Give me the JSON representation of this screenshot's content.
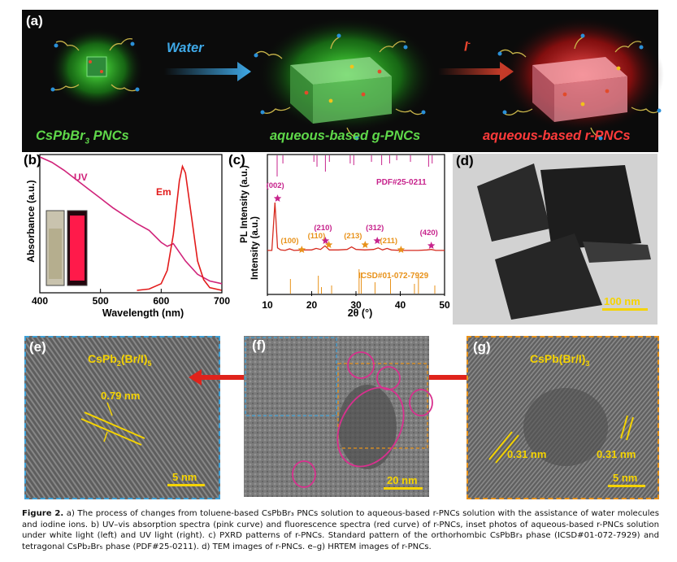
{
  "panel_a": {
    "letter": "(a)",
    "arrow1_label": "Water",
    "arrow2_label": "I",
    "arrow2_sup": "-",
    "label_left": "CsPbBr",
    "label_left_sub": "3",
    "label_left_tail": " PNCs",
    "label_mid": "aqueous-based g-PNCs",
    "label_right": "aqueous-based r-PNCs"
  },
  "panel_b": {
    "letter": "(b)",
    "ylabel": "Absorbance (a.u.)",
    "xlabel": "Wavelength (nm)",
    "uv_label": "UV",
    "em_label": "Em",
    "x_ticks": [
      "400",
      "500",
      "600",
      "700"
    ]
  },
  "panel_c": {
    "letter": "(c)",
    "ylabel_top": "PL Intensity (a.u.)",
    "ylabel_bottom": "Intensity (a.u.)",
    "xlabel": "2θ (°)",
    "ref_top": "PDF#25-0211",
    "ref_bottom": "ICSD#01-072-7929",
    "x_ticks": [
      "10",
      "20",
      "30",
      "40",
      "50"
    ],
    "peaks_pink": [
      "(002)",
      "(210)",
      "(312)",
      "(420)"
    ],
    "peaks_orange": [
      "(100)",
      "(110)",
      "(213)",
      "(211)"
    ]
  },
  "panel_d": {
    "letter": "(d)",
    "scale": "100 nm"
  },
  "panel_e": {
    "letter": "(e)",
    "phase": "CsPb",
    "phase_sub": "2",
    "phase_tail": "(Br/I)",
    "phase_sub2": "5",
    "spacing": "0.79 nm",
    "scale": "5 nm"
  },
  "panel_f": {
    "letter": "(f)",
    "scale": "20 nm"
  },
  "panel_g": {
    "letter": "(g)",
    "phase": "CsPb(Br/I)",
    "phase_sub": "3",
    "spacing1": "0.31 nm",
    "spacing2": "0.31 nm",
    "scale": "5 nm"
  },
  "caption": {
    "lead": "Figure 2.",
    "text": " a) The process of changes from toluene-based CsPbBr₃ PNCs solution to aqueous-based r-PNCs solution with the assistance of water molecules and iodine ions. b) UV–vis absorption spectra (pink curve) and fluorescence spectra (red curve) of r-PNCs, inset photos of aqueous-based r-PNCs solution under white light (left) and UV light (right). c) PXRD patterns of r-PNCs. Standard pattern of the orthorhombic CsPbBr₃ phase (ICSD#01-072-7929) and tetragonal CsPb₂Br₅ phase (PDF#25-0211). d) TEM images of r-PNCs. e–g) HRTEM images of r-PNCs."
  },
  "chart_data": [
    {
      "type": "line",
      "title": "",
      "xlabel": "Wavelength (nm)",
      "ylabel": "Absorbance (a.u.)",
      "xlim": [
        400,
        700
      ],
      "series": [
        {
          "name": "UV",
          "x": [
            400,
            420,
            440,
            460,
            480,
            500,
            520,
            540,
            560,
            580,
            600,
            610,
            620,
            640,
            660,
            680,
            700
          ],
          "y": [
            1.0,
            0.96,
            0.9,
            0.83,
            0.76,
            0.69,
            0.62,
            0.56,
            0.5,
            0.45,
            0.36,
            0.33,
            0.35,
            0.22,
            0.12,
            0.07,
            0.05
          ]
        },
        {
          "name": "Em",
          "x": [
            560,
            580,
            600,
            610,
            620,
            630,
            635,
            640,
            650,
            660,
            670,
            680,
            700
          ],
          "y": [
            0.0,
            0.01,
            0.05,
            0.15,
            0.42,
            0.82,
            0.93,
            0.88,
            0.55,
            0.22,
            0.08,
            0.02,
            0.0
          ]
        }
      ]
    },
    {
      "type": "line",
      "title": "",
      "xlabel": "2θ (°)",
      "ylabel": "Intensity (a.u.)",
      "xlim": [
        10,
        50
      ],
      "series": [
        {
          "name": "",
          "x": [
            10,
            11,
            11.7,
            12.3,
            13,
            14,
            15,
            16,
            18,
            20,
            21,
            22,
            23,
            24,
            26,
            28,
            29,
            30,
            32,
            34,
            35,
            36,
            37,
            38,
            40,
            42,
            44,
            46,
            47,
            48,
            50
          ],
          "y": [
            0.05,
            0.05,
            1.0,
            0.1,
            0.06,
            0.05,
            0.08,
            0.05,
            0.06,
            0.06,
            0.09,
            0.07,
            0.14,
            0.06,
            0.06,
            0.07,
            0.12,
            0.07,
            0.06,
            0.07,
            0.1,
            0.06,
            0.09,
            0.06,
            0.05,
            0.05,
            0.05,
            0.06,
            0.07,
            0.05,
            0.05
          ]
        }
      ]
    }
  ]
}
